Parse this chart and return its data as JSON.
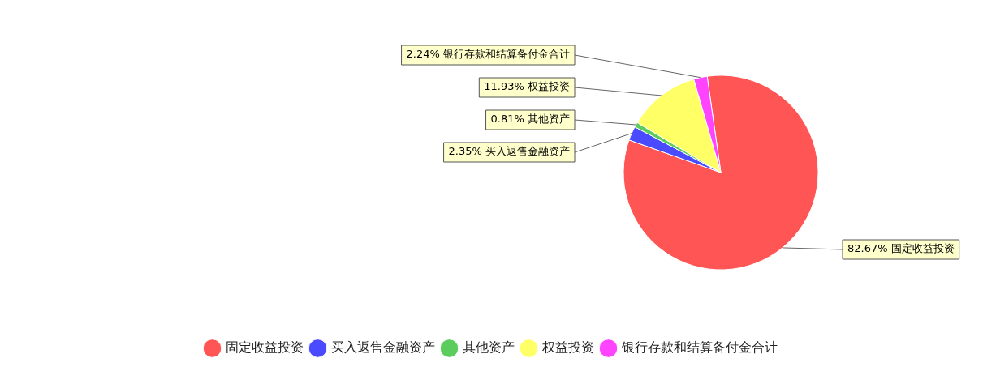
{
  "chart_data": {
    "type": "pie",
    "categories": [
      "固定收益投资",
      "买入返售金融资产",
      "其他资产",
      "权益投资",
      "银行存款和结算备付金合计"
    ],
    "values": [
      82.67,
      2.35,
      0.81,
      11.93,
      2.24
    ],
    "colors": [
      "#ff5555",
      "#4a4aff",
      "#5ccc5c",
      "#ffff66",
      "#ff44ff"
    ],
    "value_labels": [
      "82.67%",
      "2.35%",
      "0.81%",
      "11.93%",
      "2.24%"
    ],
    "legend": "bottom"
  }
}
